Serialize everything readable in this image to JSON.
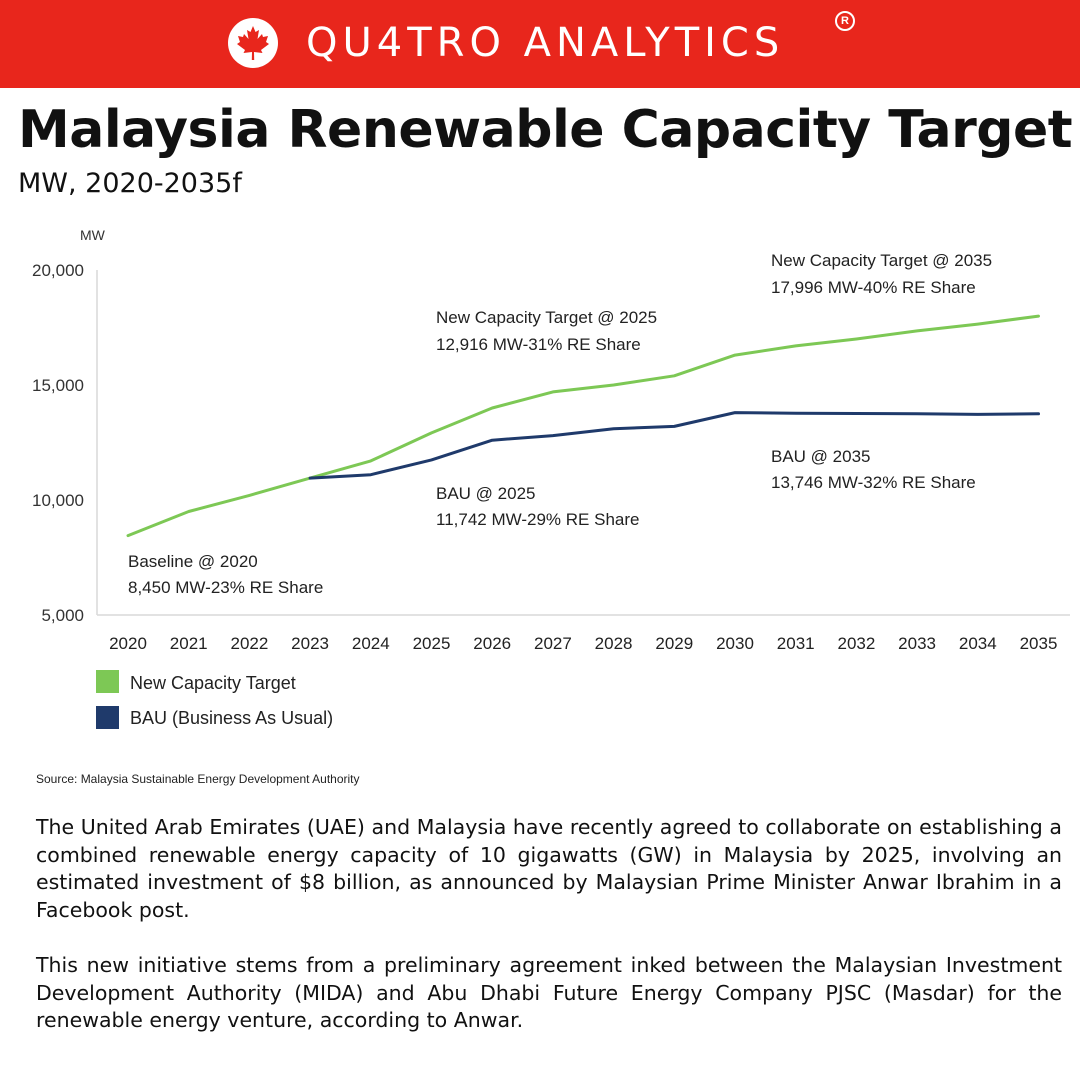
{
  "header": {
    "brand": "QU4TRO ANALYTICS",
    "registered_mark": "R",
    "background_color": "#e8261c",
    "logo_icon": "maple-leaf-icon"
  },
  "title": "Malaysia Renewable Capacity Target",
  "subtitle": "MW, 2020-2035f",
  "chart_data": {
    "type": "line",
    "ylabel": "MW",
    "ylim": [
      5000,
      20000
    ],
    "y_ticks": [
      "20,000",
      "15,000",
      "10,000",
      "5,000"
    ],
    "y_tick_values": [
      20000,
      15000,
      10000,
      5000
    ],
    "x": [
      "2020",
      "2021",
      "2022",
      "2023",
      "2024",
      "2025",
      "2026",
      "2027",
      "2028",
      "2029",
      "2030",
      "2031",
      "2032",
      "2033",
      "2034",
      "2035"
    ],
    "series": [
      {
        "name": "New Capacity Target",
        "color": "#7dc855",
        "values": [
          8450,
          9500,
          10200,
          10950,
          11700,
          12916,
          14000,
          14700,
          15000,
          15400,
          16300,
          16700,
          17000,
          17350,
          17650,
          17996
        ]
      },
      {
        "name": "BAU",
        "color": "#1f3a6b",
        "values": [
          null,
          null,
          null,
          10950,
          11100,
          11742,
          12600,
          12800,
          13100,
          13200,
          13800,
          13770,
          13760,
          13750,
          13720,
          13746
        ]
      }
    ],
    "annotations": [
      {
        "line1": "Baseline @ 2020",
        "line2": "8,450 MW-23% RE Share"
      },
      {
        "line1": "New Capacity Target @ 2025",
        "line2": "12,916 MW-31% RE Share"
      },
      {
        "line1": "New Capacity Target @ 2035",
        "line2": "17,996 MW-40% RE Share"
      },
      {
        "line1": "BAU @ 2025",
        "line2": "11,742 MW-29% RE Share"
      },
      {
        "line1": "BAU @ 2035",
        "line2": "13,746 MW-32% RE Share"
      }
    ],
    "legend": [
      {
        "label": "New Capacity Target",
        "color": "#7dc855"
      },
      {
        "label": "BAU",
        "suffix": "(Business As Usual)",
        "color": "#1f3a6b"
      }
    ],
    "legend_position": "bottom-left",
    "grid": false
  },
  "source": "Source: Malaysia Sustainable Energy Development Authority",
  "paragraphs": [
    "The United Arab Emirates (UAE) and Malaysia have recently agreed to collaborate on establishing a combined renewable energy capacity of 10 gigawatts (GW) in Malaysia by 2025, involving an estimated investment of $8 billion, as announced by Malaysian Prime Minister Anwar Ibrahim in a Facebook post.",
    "This new initiative stems from a preliminary agreement inked between the Malaysian Investment Development Authority (MIDA) and Abu Dhabi Future Energy Company PJSC (Masdar) for the renewable energy venture, according to Anwar."
  ]
}
